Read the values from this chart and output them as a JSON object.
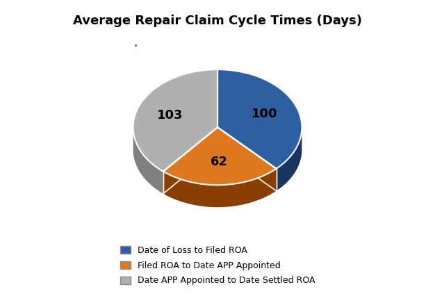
{
  "title": "Average Repair Claim Cycle Times (Days)",
  "values": [
    100,
    62,
    103
  ],
  "labels": [
    "100",
    "62",
    "103"
  ],
  "legend_labels": [
    "Date of Loss to Filed ROA",
    "Filed ROA to Date APP Appointed",
    "Date APP Appointed to Date Settled ROA"
  ],
  "colors": [
    "#2e5fa3",
    "#e07820",
    "#b0b0b0"
  ],
  "shadow_colors": [
    "#1a3660",
    "#8b3e00",
    "#808080"
  ],
  "title_fontsize": 13,
  "label_fontsize": 13,
  "startangle": 90,
  "figsize": [
    6.26,
    4.26
  ],
  "dpi": 100
}
